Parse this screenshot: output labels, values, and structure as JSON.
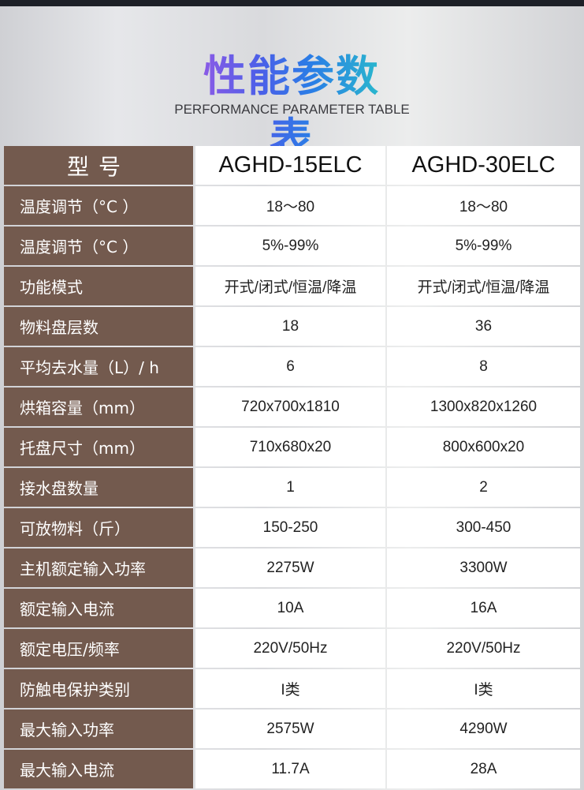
{
  "title": "性能参数表",
  "subtitle": "PERFORMANCE PARAMETER TABLE",
  "header": {
    "label": "型号",
    "models": [
      "AGHD-15ELC",
      "AGHD-30ELC"
    ]
  },
  "rows": [
    {
      "label": "温度调节（°C ）",
      "values": [
        "18～80",
        "18～80"
      ]
    },
    {
      "label": "温度调节（°C ）",
      "values": [
        "5%-99%",
        "5%-99%"
      ]
    },
    {
      "label": "功能模式",
      "values": [
        "开式/闭式/恒温/降温",
        "开式/闭式/恒温/降温"
      ]
    },
    {
      "label": "物料盘层数",
      "values": [
        "18",
        "36"
      ]
    },
    {
      "label": "平均去水量（L）/ h",
      "values": [
        "6",
        "8"
      ]
    },
    {
      "label": "烘箱容量（mm）",
      "values": [
        "720x700x1810",
        "1300x820x1260"
      ]
    },
    {
      "label": "托盘尺寸（mm）",
      "values": [
        "710x680x20",
        "800x600x20"
      ]
    },
    {
      "label": "接水盘数量",
      "values": [
        "1",
        "2"
      ]
    },
    {
      "label": "可放物料（斤）",
      "values": [
        "150-250",
        "300-450"
      ]
    },
    {
      "label": "主机额定输入功率",
      "values": [
        "2275W",
        "3300W"
      ]
    },
    {
      "label": "额定输入电流",
      "values": [
        "10A",
        "16A"
      ]
    },
    {
      "label": "额定电压/频率",
      "values": [
        "220V/50Hz",
        "220V/50Hz"
      ]
    },
    {
      "label": "防触电保护类别",
      "values": [
        "I类",
        "I类"
      ]
    },
    {
      "label": "最大输入功率",
      "values": [
        "2575W",
        "4290W"
      ]
    },
    {
      "label": "最大输入电流",
      "values": [
        "11.7A",
        "28A"
      ]
    }
  ],
  "colors": {
    "label_bg": "#735a4e",
    "cell_bg": "#ffffff"
  }
}
